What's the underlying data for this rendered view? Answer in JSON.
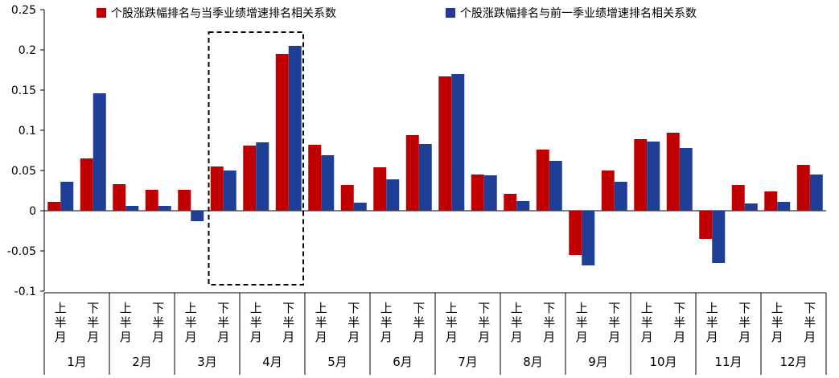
{
  "chart_data": {
    "type": "bar",
    "title": "",
    "xlabel": "",
    "ylabel": "",
    "ylim": [
      -0.1,
      0.25
    ],
    "yticks": [
      -0.1,
      -0.05,
      0,
      0.05,
      0.1,
      0.15,
      0.2,
      0.25
    ],
    "ytick_labels": [
      "-0.1",
      "-0.05",
      "0",
      "0.05",
      "0.1",
      "0.15",
      "0.2",
      "0.25"
    ],
    "grid": false,
    "legend_position": "top",
    "months": [
      "1月",
      "2月",
      "3月",
      "4月",
      "5月",
      "6月",
      "7月",
      "8月",
      "9月",
      "10月",
      "11月",
      "12月"
    ],
    "halves": [
      "上半月",
      "下半月"
    ],
    "categories": [
      "1月上半月",
      "1月下半月",
      "2月上半月",
      "2月下半月",
      "3月上半月",
      "3月下半月",
      "4月上半月",
      "4月下半月",
      "5月上半月",
      "5月下半月",
      "6月上半月",
      "6月下半月",
      "7月上半月",
      "7月下半月",
      "8月上半月",
      "8月下半月",
      "9月上半月",
      "9月下半月",
      "10月上半月",
      "10月下半月",
      "11月上半月",
      "11月下半月",
      "12月上半月",
      "12月下半月"
    ],
    "series": [
      {
        "name": "个股涨跌幅排名与当季业绩增速排名相关系数",
        "color": "#C00000",
        "values": [
          0.011,
          0.065,
          0.033,
          0.026,
          0.026,
          0.055,
          0.081,
          0.195,
          0.082,
          0.032,
          0.054,
          0.094,
          0.167,
          0.045,
          0.021,
          0.076,
          -0.055,
          0.05,
          0.089,
          0.097,
          -0.035,
          0.032,
          0.024,
          0.057
        ]
      },
      {
        "name": "个股涨跌幅排名与前一季业绩增速排名相关系数",
        "color": "#1F3E96",
        "values": [
          0.036,
          0.146,
          0.006,
          0.006,
          -0.013,
          0.05,
          0.085,
          0.205,
          0.069,
          0.01,
          0.039,
          0.083,
          0.17,
          0.044,
          0.012,
          0.062,
          -0.068,
          0.036,
          0.086,
          0.078,
          -0.065,
          0.009,
          0.011,
          0.045
        ]
      }
    ],
    "highlight": {
      "months": [
        "3月",
        "4月"
      ],
      "halves": [
        "下半月",
        "上半月"
      ],
      "style": "dashed-box"
    }
  }
}
